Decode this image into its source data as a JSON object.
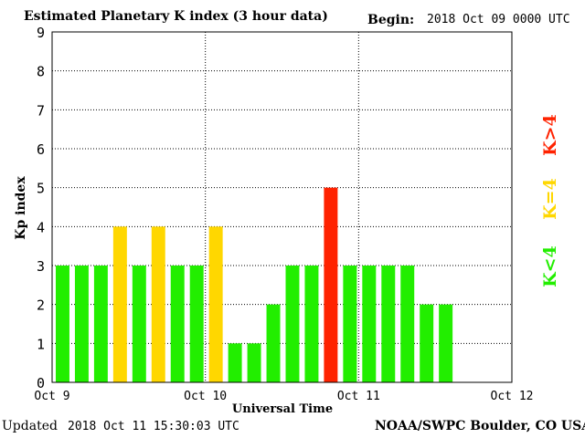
{
  "header": {
    "title": "Estimated Planetary K index (3 hour data)",
    "begin_label": "Begin:",
    "begin_value": "2018 Oct 09 0000 UTC"
  },
  "footer": {
    "updated_label": "Updated",
    "updated_value": "2018 Oct 11 15:30:03 UTC",
    "credit": "NOAA/SWPC Boulder, CO USA"
  },
  "legend": [
    {
      "label": "K>4",
      "color": "#ff2200"
    },
    {
      "label": "K=4",
      "color": "#ffd700"
    },
    {
      "label": "K<4",
      "color": "#22ee00"
    }
  ],
  "chart_data": {
    "type": "bar",
    "title": "Estimated Planetary K index (3 hour data)",
    "xlabel": "Universal Time",
    "ylabel": "Kp index",
    "ylim": [
      0,
      9
    ],
    "yticks": [
      0,
      1,
      2,
      3,
      4,
      5,
      6,
      7,
      8,
      9
    ],
    "x_range_slots": 24,
    "x_ticks": [
      {
        "label": "Oct 9",
        "slot": 0
      },
      {
        "label": "Oct 10",
        "slot": 8
      },
      {
        "label": "Oct 11",
        "slot": 16
      },
      {
        "label": "Oct 12",
        "slot": 24
      }
    ],
    "values": [
      3,
      3,
      3,
      4,
      3,
      4,
      3,
      3,
      4,
      1,
      1,
      2,
      3,
      3,
      5,
      3,
      3,
      3,
      3,
      2,
      2
    ],
    "color_rule": {
      "below_4": "#22ee00",
      "equal_4": "#ffd700",
      "above_4": "#ff2200"
    },
    "grid": true,
    "legend_position": "right"
  }
}
